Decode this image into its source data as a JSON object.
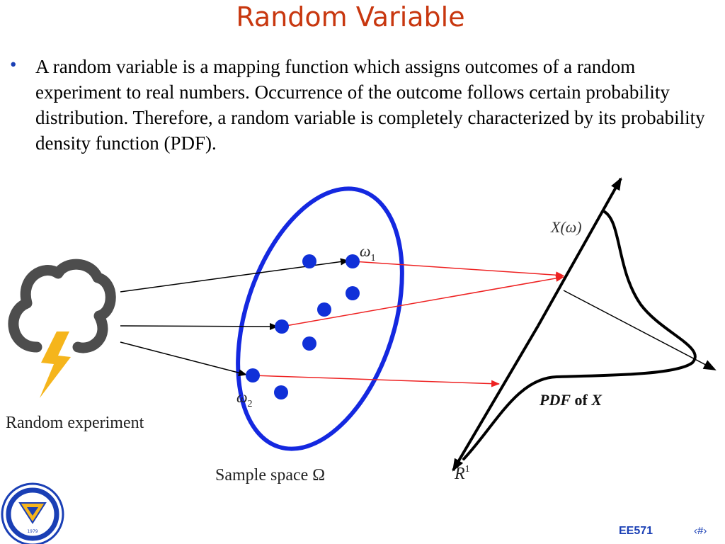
{
  "slide": {
    "title": "Random Variable",
    "bullet": "A random variable is a mapping function which assigns outcomes of a random experiment to real numbers. Occurrence of the outcome follows certain probability distribution. Therefore, a random variable is completely characterized by its probability density function (PDF)."
  },
  "diagram": {
    "experiment_label": "Random experiment",
    "sample_space_label": "Sample space Ω",
    "omega1_label": "ω",
    "omega1_sub": "1",
    "omega2_label": "ω",
    "omega2_sub": "2",
    "x_omega_label": "X(ω)",
    "pdf_label_pdf": "PDF",
    "pdf_label_of": " of ",
    "pdf_label_x": "X",
    "r_label": "R",
    "r_sup": "1",
    "colors": {
      "sample_space": "#1428e0",
      "points": "#1030d8",
      "mapping_arrows": "#ee2222",
      "cloud": "#4d4d4d",
      "lightning": "#f5b51c"
    }
  },
  "footer": {
    "logo_year": "1979",
    "course_code": "EE571",
    "page_marker": "‹#›"
  }
}
